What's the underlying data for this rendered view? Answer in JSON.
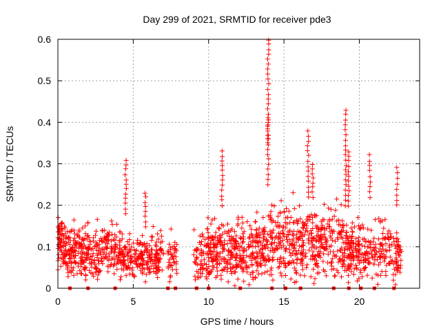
{
  "chart_data": {
    "type": "scatter",
    "title": "Day 299 of 2021, SRMTID for receiver pde3",
    "xlabel": "GPS time / hours",
    "ylabel": "SRMTID / TECUs",
    "xlim": [
      0,
      24
    ],
    "ylim": [
      0,
      0.6
    ],
    "xticks": [
      0,
      5,
      10,
      15,
      20
    ],
    "yticks": [
      0,
      0.1,
      0.2,
      0.3,
      0.4,
      0.5,
      0.6
    ],
    "xtick_labels": [
      "0",
      "5",
      "10",
      "15",
      "20"
    ],
    "ytick_labels": [
      "0",
      "0.1",
      "0.2",
      "0.3",
      "0.4",
      "0.5",
      "0.6"
    ],
    "grid": true,
    "marker": "plus",
    "color": "#ff0000",
    "clusters": [
      {
        "x": [
          0.0,
          4.2
        ],
        "ymin": 0.01,
        "ymax": 0.19,
        "n": 380
      },
      {
        "x": [
          0.0,
          0.3
        ],
        "ymin": 0.08,
        "ymax": 0.21,
        "n": 25
      },
      {
        "x": [
          4.2,
          7.0
        ],
        "ymin": 0.01,
        "ymax": 0.16,
        "n": 230
      },
      {
        "x": [
          7.3,
          7.9
        ],
        "ymin": 0.0,
        "ymax": 0.17,
        "n": 40
      },
      {
        "x": [
          9.0,
          9.9
        ],
        "ymin": 0.01,
        "ymax": 0.15,
        "n": 60
      },
      {
        "x": [
          9.9,
          14.0
        ],
        "ymin": 0.0,
        "ymax": 0.2,
        "n": 380
      },
      {
        "x": [
          14.0,
          19.0
        ],
        "ymin": 0.0,
        "ymax": 0.25,
        "n": 420
      },
      {
        "x": [
          19.0,
          22.8
        ],
        "ymin": 0.0,
        "ymax": 0.2,
        "n": 300
      }
    ],
    "spikes": [
      {
        "x": 4.5,
        "ymax": 0.31,
        "ymin": 0.18
      },
      {
        "x": 5.8,
        "ymax": 0.23,
        "ymin": 0.15
      },
      {
        "x": 10.9,
        "ymax": 0.33,
        "ymin": 0.2
      },
      {
        "x": 13.95,
        "ymax": 0.6,
        "ymin": 0.25
      },
      {
        "x": 13.95,
        "ymax": 0.41,
        "ymin": 0.35
      },
      {
        "x": 16.6,
        "ymax": 0.38,
        "ymin": 0.22
      },
      {
        "x": 16.9,
        "ymax": 0.3,
        "ymin": 0.22
      },
      {
        "x": 19.1,
        "ymax": 0.43,
        "ymin": 0.2
      },
      {
        "x": 19.3,
        "ymax": 0.33,
        "ymin": 0.2
      },
      {
        "x": 20.7,
        "ymax": 0.32,
        "ymin": 0.22
      },
      {
        "x": 22.5,
        "ymax": 0.29,
        "ymin": 0.2
      }
    ],
    "zero_markers": [
      0.8,
      2.0,
      3.8,
      7.3,
      7.8,
      9.2,
      10.0,
      12.1,
      14.2,
      15.1,
      16.1,
      18.3,
      19.3,
      20.1,
      21.0,
      22.3
    ]
  }
}
